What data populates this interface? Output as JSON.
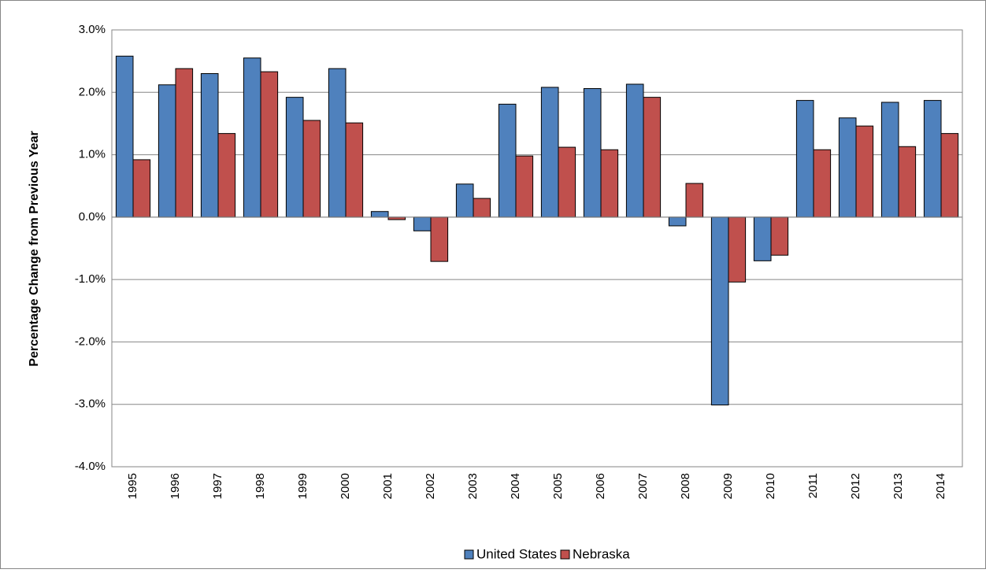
{
  "chart_data": {
    "type": "bar",
    "y_axis_label": "Percentage Change from Previous Year",
    "categories": [
      "1995",
      "1996",
      "1997",
      "1998",
      "1999",
      "2000",
      "2001",
      "2002",
      "2003",
      "2004",
      "2005",
      "2006",
      "2007",
      "2008",
      "2009",
      "2010",
      "2011",
      "2012",
      "2013",
      "2014"
    ],
    "series": [
      {
        "name": "United States",
        "color": "#4f81bd",
        "values": [
          2.58,
          2.12,
          2.3,
          2.55,
          1.92,
          2.38,
          0.09,
          -0.22,
          0.53,
          1.81,
          2.08,
          2.06,
          2.13,
          -0.14,
          -3.01,
          -0.7,
          1.87,
          1.59,
          1.84,
          1.87
        ]
      },
      {
        "name": "Nebraska",
        "color": "#c0504d",
        "values": [
          0.92,
          2.38,
          1.34,
          2.33,
          1.55,
          1.51,
          -0.04,
          -0.71,
          0.3,
          0.98,
          1.12,
          1.08,
          1.92,
          0.54,
          -1.04,
          -0.61,
          1.08,
          1.46,
          1.13,
          1.34
        ]
      }
    ],
    "ylim": [
      -4,
      3
    ],
    "yticks": [
      {
        "value": -4,
        "label": "-4.0%"
      },
      {
        "value": -3,
        "label": "-3.0%"
      },
      {
        "value": -2,
        "label": "-2.0%"
      },
      {
        "value": -1,
        "label": "-1.0%"
      },
      {
        "value": 0,
        "label": "0.0%"
      },
      {
        "value": 1,
        "label": "1.0%"
      },
      {
        "value": 2,
        "label": "2.0%"
      },
      {
        "value": 3,
        "label": "3.0%"
      }
    ],
    "grid": true,
    "legend": "bottom"
  }
}
